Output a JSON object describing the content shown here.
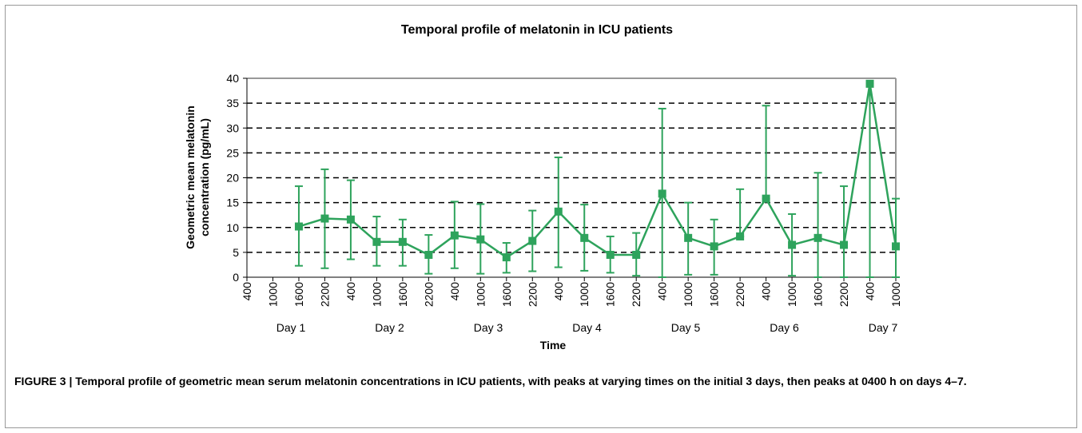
{
  "chart_data": {
    "type": "line",
    "title": "Temporal profile of melatonin in ICU patients",
    "x_label": "Time",
    "y_label": [
      "Geometric mean melatonin",
      "concentration (pg/mL)"
    ],
    "categories": [
      "400",
      "1000",
      "1600",
      "2200",
      "400",
      "1000",
      "1600",
      "2200",
      "400",
      "1000",
      "1600",
      "2200",
      "400",
      "1000",
      "1600",
      "2200",
      "400",
      "1000",
      "1600",
      "2200",
      "400",
      "1000",
      "1600",
      "2200",
      "400",
      "1000"
    ],
    "group_labels": [
      "Day 1",
      "Day 2",
      "Day 3",
      "Day 4",
      "Day 5",
      "Day 6",
      "Day 7"
    ],
    "ylim": [
      0,
      40
    ],
    "yticks": [
      0,
      5,
      10,
      15,
      20,
      25,
      30,
      35,
      40
    ],
    "grid": true,
    "series": [
      {
        "color": "#2ea35c",
        "values": [
          null,
          null,
          10.2,
          11.8,
          11.6,
          7.1,
          7.1,
          4.5,
          8.4,
          7.6,
          4.0,
          7.3,
          13.2,
          7.9,
          4.5,
          4.5,
          16.8,
          7.9,
          6.2,
          8.2,
          15.8,
          6.5,
          7.9,
          6.5,
          38.9,
          6.2
        ],
        "lower": [
          null,
          null,
          2.3,
          1.8,
          3.6,
          2.3,
          2.3,
          0.7,
          1.8,
          0.7,
          0.9,
          1.2,
          2.0,
          1.3,
          0.9,
          0.3,
          0,
          0.5,
          0.5,
          8.2,
          15.8,
          0.3,
          0,
          0,
          0,
          0
        ],
        "upper": [
          null,
          null,
          18.3,
          21.7,
          19.5,
          12.2,
          11.6,
          8.5,
          15.2,
          14.7,
          6.9,
          13.4,
          24.1,
          14.6,
          8.2,
          8.9,
          33.9,
          15.0,
          11.6,
          17.7,
          34.5,
          12.7,
          21.0,
          18.3,
          38.9,
          15.8
        ]
      }
    ]
  },
  "caption": "FIGURE 3 | Temporal profile of geometric mean serum melatonin concentrations in ICU patients, with peaks at varying times on the initial 3 days, then peaks at 0400 h on days 4–7."
}
